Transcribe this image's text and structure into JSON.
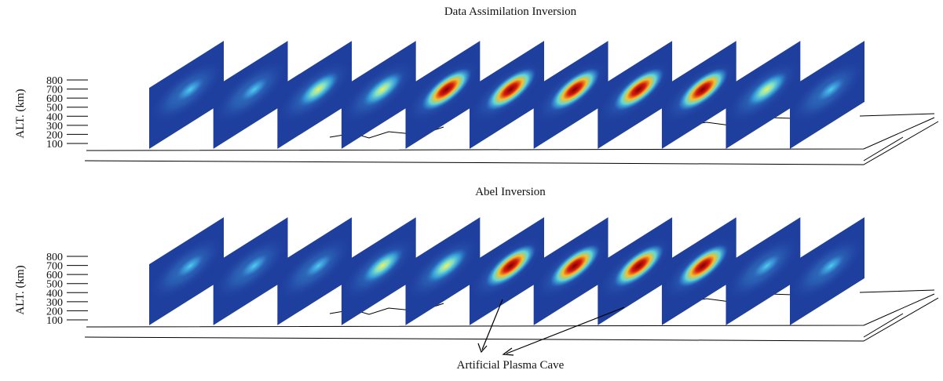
{
  "panels": [
    {
      "title": "Data Assimilation Inversion",
      "axis_label": "ALT. (km)",
      "ticks": [
        800,
        700,
        600,
        500,
        400,
        300,
        200,
        100
      ]
    },
    {
      "title": "Abel Inversion",
      "axis_label": "ALT. (km)",
      "ticks": [
        800,
        700,
        600,
        500,
        400,
        300,
        200,
        100
      ]
    }
  ],
  "annotation": "Artificial Plasma Cave"
}
